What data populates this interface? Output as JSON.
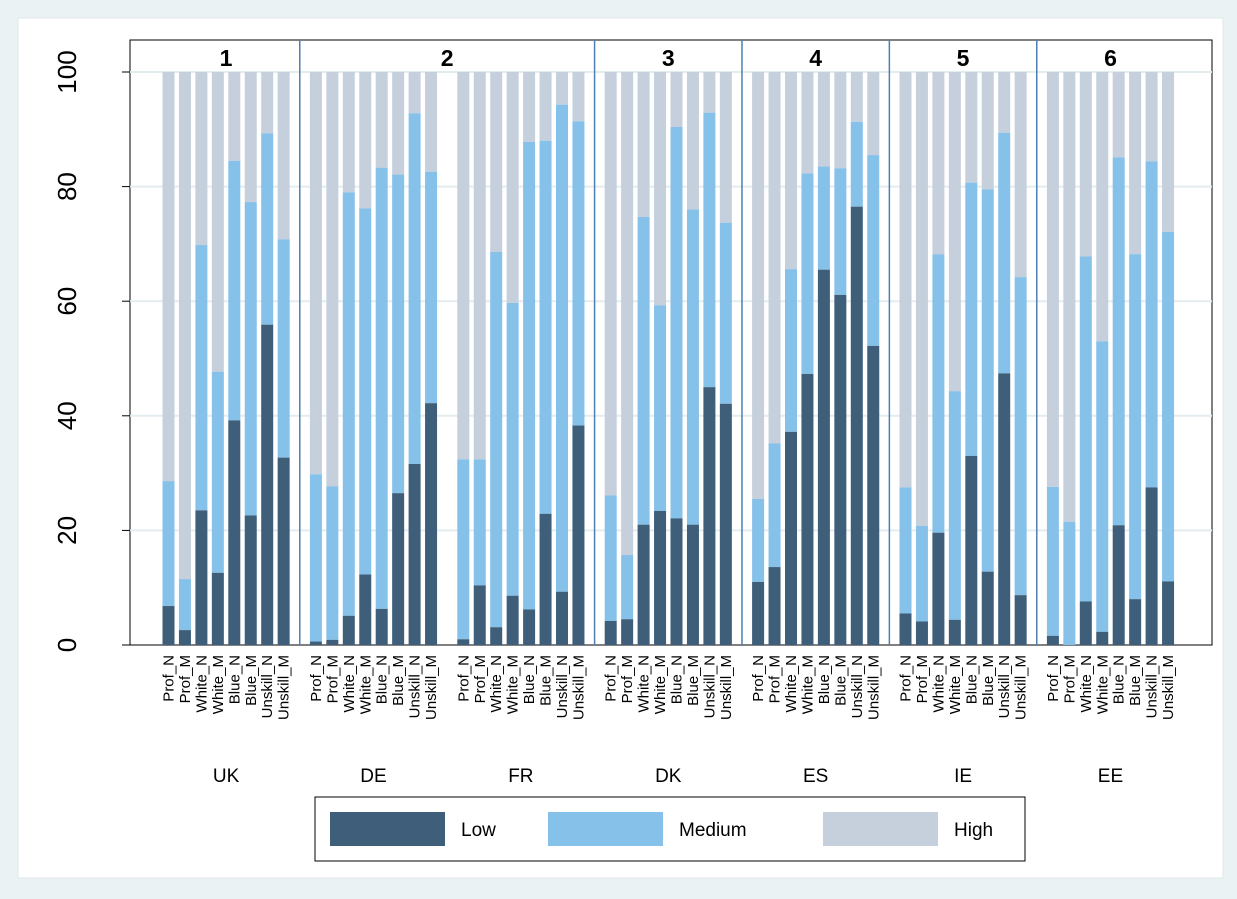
{
  "chart_data": {
    "type": "bar",
    "stacked": true,
    "title": "",
    "xlabel": "",
    "ylabel": "",
    "ylim": [
      0,
      100
    ],
    "yticks": [
      0,
      20,
      40,
      60,
      80,
      100
    ],
    "grid": true,
    "legend_position": "bottom",
    "categories": [
      "Prof_N",
      "Prof_M",
      "White_N",
      "White_M",
      "Blue_N",
      "Blue_M",
      "Unskill_N",
      "Unskill_M"
    ],
    "countries": [
      "UK",
      "DE",
      "FR",
      "DK",
      "ES",
      "IE",
      "EE"
    ],
    "group_labels": [
      {
        "label": "1",
        "countries": [
          "UK"
        ]
      },
      {
        "label": "2",
        "countries": [
          "DE",
          "FR"
        ]
      },
      {
        "label": "3",
        "countries": [
          "DK"
        ]
      },
      {
        "label": "4",
        "countries": [
          "ES"
        ]
      },
      {
        "label": "5",
        "countries": [
          "IE"
        ]
      },
      {
        "label": "6",
        "countries": [
          "EE"
        ]
      }
    ],
    "series": [
      {
        "name": "Low",
        "color": "#3e5e79"
      },
      {
        "name": "Medium",
        "color": "#86c1e9"
      },
      {
        "name": "High",
        "color": "#c6d0dc"
      }
    ],
    "data": {
      "UK": {
        "low": [
          6.8,
          2.6,
          23.5,
          12.6,
          39.2,
          22.6,
          55.9,
          32.7
        ],
        "medium": [
          21.8,
          8.9,
          46.3,
          35.1,
          45.3,
          54.7,
          33.4,
          38.1
        ]
      },
      "DE": {
        "low": [
          0.6,
          0.9,
          5.1,
          12.3,
          6.3,
          26.5,
          31.6,
          42.2
        ],
        "medium": [
          29.2,
          26.8,
          73.9,
          63.9,
          77.0,
          55.6,
          61.2,
          40.4
        ]
      },
      "FR": {
        "low": [
          1.0,
          10.4,
          3.1,
          8.6,
          6.2,
          22.9,
          9.3,
          38.3
        ],
        "medium": [
          31.4,
          22.0,
          65.5,
          51.1,
          81.6,
          65.1,
          85.0,
          53.1
        ]
      },
      "DK": {
        "low": [
          4.2,
          4.5,
          21.0,
          23.4,
          22.1,
          21.0,
          45.0,
          42.1
        ],
        "medium": [
          21.9,
          11.2,
          53.7,
          35.9,
          68.3,
          55.0,
          47.9,
          31.6
        ]
      },
      "ES": {
        "low": [
          11.0,
          13.6,
          37.2,
          47.3,
          65.5,
          61.1,
          76.5,
          52.2
        ],
        "medium": [
          14.5,
          21.6,
          28.4,
          35.0,
          18.0,
          22.1,
          14.8,
          33.3
        ]
      },
      "IE": {
        "low": [
          5.5,
          4.1,
          19.6,
          4.4,
          33.0,
          12.8,
          47.4,
          8.7
        ],
        "medium": [
          22.0,
          16.7,
          48.6,
          39.9,
          47.7,
          66.7,
          42.0,
          55.5
        ]
      },
      "EE": {
        "low": [
          1.6,
          0.0,
          7.6,
          2.3,
          20.9,
          8.0,
          27.5,
          11.1
        ],
        "medium": [
          26.0,
          21.5,
          60.2,
          50.7,
          64.2,
          60.2,
          56.9,
          61.0
        ]
      }
    }
  }
}
